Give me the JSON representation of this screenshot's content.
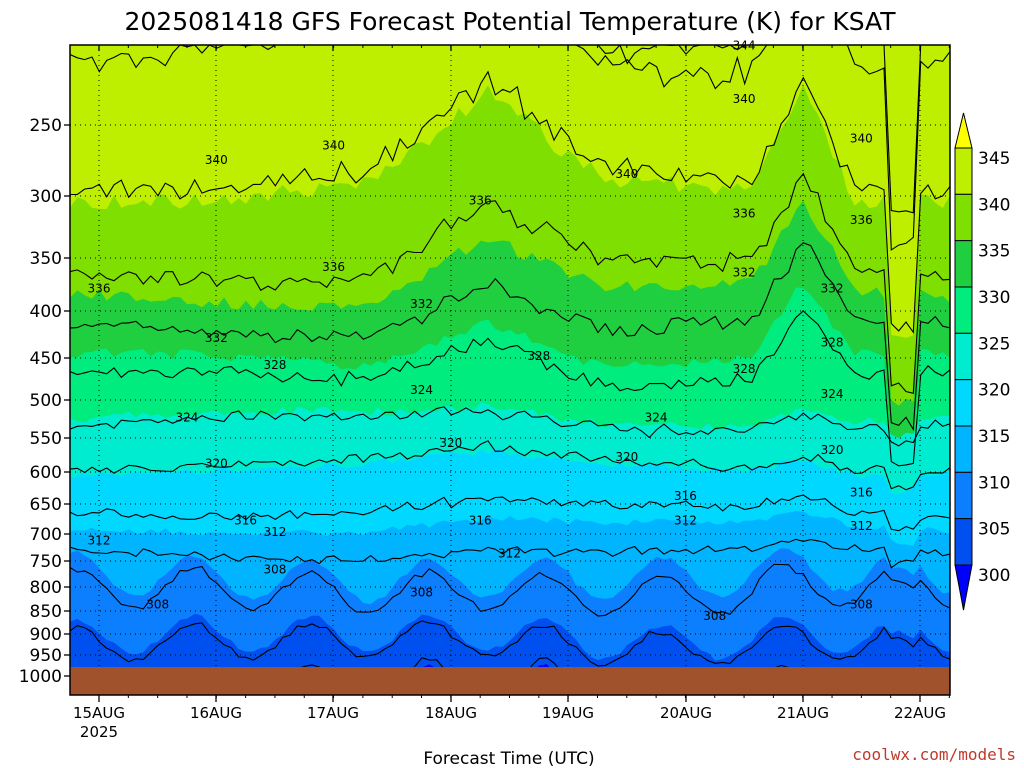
{
  "chart_data": {
    "type": "heatmap",
    "title": "2025081418 GFS Forecast Potential Temperature (K) for KSAT",
    "xlabel": "Forecast Time (UTC)",
    "ylabel": "",
    "units": "K",
    "credit": "coolwx.com/models",
    "x_tick_labels": [
      "15AUG",
      "16AUG",
      "17AUG",
      "18AUG",
      "19AUG",
      "20AUG",
      "21AUG",
      "22AUG"
    ],
    "x_year_label": "2025",
    "x_range": [
      "2025-08-14 18Z",
      "2025-08-22 06Z"
    ],
    "y_axis": {
      "scale": "log-pressure",
      "inverted": true,
      "range": [
        1000,
        200
      ]
    },
    "y_tick_labels": [
      250,
      300,
      350,
      400,
      450,
      500,
      550,
      600,
      650,
      700,
      750,
      800,
      850,
      900,
      950,
      1000
    ],
    "grid": true,
    "colorbar": {
      "position": "right",
      "labels": [
        345,
        340,
        335,
        330,
        325,
        320,
        315,
        310,
        305,
        300
      ],
      "colors": [
        "#ffff00",
        "#bfef00",
        "#7fdf00",
        "#1fcf3f",
        "#00ec7f",
        "#00ecd0",
        "#00d8ff",
        "#00b4ff",
        "#0c7fff",
        "#0050f0",
        "#0000ff"
      ],
      "extend": "both"
    },
    "ground_color": "#a0522d",
    "level_ticks": [
      300,
      305,
      310,
      315,
      320,
      325,
      330,
      335,
      340,
      345
    ],
    "contour_labels": [
      {
        "value": "344",
        "time": "2025-08-20 12Z",
        "p": 205
      },
      {
        "value": "340",
        "time": "2025-08-16 00Z",
        "p": 275
      },
      {
        "value": "340",
        "time": "2025-08-17 00Z",
        "p": 265
      },
      {
        "value": "340",
        "time": "2025-08-19 12Z",
        "p": 285
      },
      {
        "value": "340",
        "time": "2025-08-20 12Z",
        "p": 235
      },
      {
        "value": "340",
        "time": "2025-08-21 12Z",
        "p": 260
      },
      {
        "value": "336",
        "time": "2025-08-15 00Z",
        "p": 380
      },
      {
        "value": "336",
        "time": "2025-08-17 00Z",
        "p": 360
      },
      {
        "value": "336",
        "time": "2025-08-18 06Z",
        "p": 305
      },
      {
        "value": "336",
        "time": "2025-08-20 12Z",
        "p": 315
      },
      {
        "value": "336",
        "time": "2025-08-21 12Z",
        "p": 320
      },
      {
        "value": "332",
        "time": "2025-08-16 00Z",
        "p": 430
      },
      {
        "value": "332",
        "time": "2025-08-17 18Z",
        "p": 395
      },
      {
        "value": "332",
        "time": "2025-08-20 12Z",
        "p": 365
      },
      {
        "value": "332",
        "time": "2025-08-21 06Z",
        "p": 380
      },
      {
        "value": "328",
        "time": "2025-08-16 12Z",
        "p": 460
      },
      {
        "value": "328",
        "time": "2025-08-18 18Z",
        "p": 450
      },
      {
        "value": "328",
        "time": "2025-08-20 12Z",
        "p": 465
      },
      {
        "value": "328",
        "time": "2025-08-21 06Z",
        "p": 435
      },
      {
        "value": "324",
        "time": "2025-08-15 18Z",
        "p": 525
      },
      {
        "value": "324",
        "time": "2025-08-17 18Z",
        "p": 490
      },
      {
        "value": "324",
        "time": "2025-08-19 18Z",
        "p": 525
      },
      {
        "value": "324",
        "time": "2025-08-21 06Z",
        "p": 495
      },
      {
        "value": "320",
        "time": "2025-08-16 00Z",
        "p": 590
      },
      {
        "value": "320",
        "time": "2025-08-18 00Z",
        "p": 560
      },
      {
        "value": "320",
        "time": "2025-08-19 12Z",
        "p": 580
      },
      {
        "value": "320",
        "time": "2025-08-21 06Z",
        "p": 570
      },
      {
        "value": "316",
        "time": "2025-08-16 06Z",
        "p": 680
      },
      {
        "value": "316",
        "time": "2025-08-18 06Z",
        "p": 680
      },
      {
        "value": "316",
        "time": "2025-08-20 00Z",
        "p": 640
      },
      {
        "value": "316",
        "time": "2025-08-21 12Z",
        "p": 635
      },
      {
        "value": "312",
        "time": "2025-08-15 00Z",
        "p": 715
      },
      {
        "value": "312",
        "time": "2025-08-16 12Z",
        "p": 700
      },
      {
        "value": "312",
        "time": "2025-08-18 12Z",
        "p": 740
      },
      {
        "value": "312",
        "time": "2025-08-20 00Z",
        "p": 680
      },
      {
        "value": "312",
        "time": "2025-08-21 12Z",
        "p": 690
      },
      {
        "value": "308",
        "time": "2025-08-15 12Z",
        "p": 840
      },
      {
        "value": "308",
        "time": "2025-08-16 12Z",
        "p": 770
      },
      {
        "value": "308",
        "time": "2025-08-17 18Z",
        "p": 815
      },
      {
        "value": "308",
        "time": "2025-08-20 06Z",
        "p": 865
      },
      {
        "value": "308",
        "time": "2025-08-21 12Z",
        "p": 840
      }
    ]
  }
}
